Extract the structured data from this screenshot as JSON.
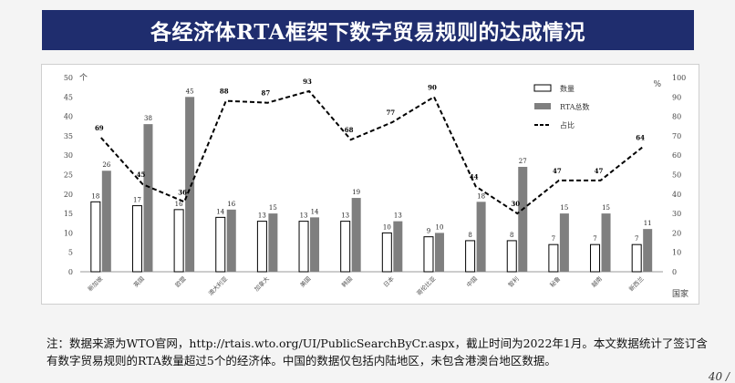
{
  "title": "各经济体RTA框架下数字贸易规则的达成情况",
  "note": "注：数据来源为WTO官网，http://rtais.wto.org/UI/PublicSearchByCr.aspx，截止时间为2022年1月。本文数据统计了签订含有数字贸易规则的RTA数量超过5个的经济体。中国的数据仅包括内陆地区，未包含港澳台地区数据。",
  "page_number": "40 /",
  "chart_data": {
    "type": "bar",
    "categories": [
      "新加坡",
      "英国",
      "欧盟",
      "澳大利亚",
      "加拿大",
      "美国",
      "韩国",
      "日本",
      "哥伦比亚",
      "中国",
      "智利",
      "秘鲁",
      "越南",
      "新西兰"
    ],
    "series": [
      {
        "name": "数量",
        "type": "bar",
        "axis": "left",
        "color": "#ffffff",
        "stroke": "#000000",
        "values": [
          18,
          17,
          16,
          14,
          13,
          13,
          13,
          10,
          9,
          8,
          8,
          7,
          7,
          7
        ]
      },
      {
        "name": "RTA总数",
        "type": "bar",
        "axis": "left",
        "color": "#7f7f7f",
        "values": [
          26,
          38,
          45,
          16,
          15,
          14,
          19,
          13,
          10,
          18,
          27,
          15,
          15,
          11
        ]
      },
      {
        "name": "占比",
        "type": "line",
        "axis": "right",
        "style": "dashed",
        "color": "#000000",
        "values": [
          69,
          45,
          36,
          88,
          87,
          93,
          68,
          77,
          90,
          44,
          30,
          47,
          47,
          64
        ]
      }
    ],
    "bar_labels": [
      [
        "18",
        "17",
        "16",
        "14",
        "13",
        "13",
        "13",
        "10",
        "9",
        "8",
        "8",
        "7",
        "7",
        "7"
      ],
      [
        "26",
        "38",
        "45",
        "16",
        "15",
        "14",
        "19",
        "13",
        "10",
        "18",
        "27",
        "15",
        "15",
        "11"
      ]
    ],
    "line_labels": [
      "69",
      "45",
      "36",
      "88",
      "87",
      "93",
      "68",
      "77",
      "90",
      "44",
      "30",
      "47",
      "47",
      "64"
    ],
    "ylim_left": [
      0,
      50
    ],
    "ylim_right": [
      0,
      100
    ],
    "yticks_left": [
      "0",
      "5",
      "10",
      "15",
      "20",
      "25",
      "30",
      "35",
      "40",
      "45",
      "50"
    ],
    "yticks_right": [
      "0",
      "10",
      "20",
      "30",
      "40",
      "50",
      "60",
      "70",
      "80",
      "90",
      "100"
    ],
    "ylabel_left": "个",
    "ylabel_right": "%",
    "xlabel": "国家",
    "legend_position": "top-right",
    "grid": false
  }
}
